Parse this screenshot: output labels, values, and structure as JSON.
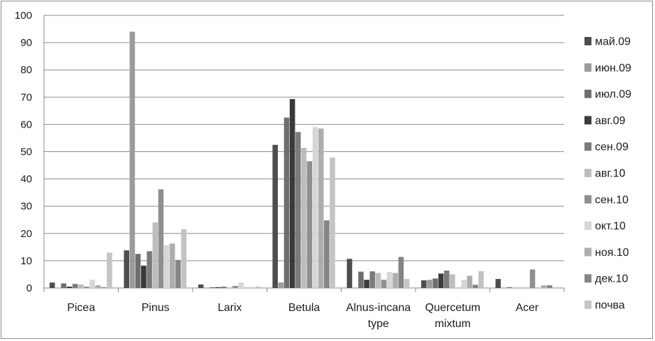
{
  "chart_data": {
    "type": "bar",
    "title": "",
    "xlabel": "",
    "ylabel": "",
    "ylim": [
      0,
      100
    ],
    "yticks": [
      "0",
      "10",
      "20",
      "30",
      "40",
      "50",
      "60",
      "70",
      "80",
      "90",
      "100"
    ],
    "grid": "horizontal",
    "legend_position": "right",
    "categories": [
      [
        "Picea"
      ],
      [
        "Pinus"
      ],
      [
        "Larix"
      ],
      [
        "Betula"
      ],
      [
        "Alnus-incana",
        "type"
      ],
      [
        "Quercetum",
        "mixtum"
      ],
      [
        "Acer"
      ]
    ],
    "series": [
      {
        "name": "май.09",
        "color": "#4d4d4d",
        "values": [
          2.0,
          13.8,
          1.3,
          52.5,
          10.7,
          2.8,
          3.3
        ]
      },
      {
        "name": "июн.09",
        "color": "#9b9b9b",
        "values": [
          0.0,
          94.0,
          0.0,
          2.0,
          0.0,
          3.0,
          0.0
        ]
      },
      {
        "name": "июл.09",
        "color": "#6e6e6e",
        "values": [
          1.7,
          12.5,
          0.3,
          62.5,
          6.0,
          3.5,
          0.3
        ]
      },
      {
        "name": "авг.09",
        "color": "#3a3a3a",
        "values": [
          0.5,
          8.2,
          0.3,
          69.3,
          3.0,
          5.3,
          0.0
        ]
      },
      {
        "name": "сен.09",
        "color": "#7a7a7a",
        "values": [
          1.5,
          13.5,
          0.5,
          57.2,
          6.1,
          6.4,
          0.0
        ]
      },
      {
        "name": "авг.10",
        "color": "#bdbdbd",
        "values": [
          1.3,
          24.0,
          0.3,
          51.4,
          5.5,
          5.0,
          0.0
        ]
      },
      {
        "name": "сен.10",
        "color": "#8f8f8f",
        "values": [
          0.5,
          36.2,
          0.8,
          46.5,
          3.0,
          0.0,
          6.8
        ]
      },
      {
        "name": "окт.10",
        "color": "#d6d6d6",
        "values": [
          3.0,
          15.7,
          2.0,
          59.0,
          5.9,
          3.0,
          0.0
        ]
      },
      {
        "name": "ноя.10",
        "color": "#adadad",
        "values": [
          1.0,
          16.3,
          0.0,
          58.5,
          5.5,
          4.5,
          1.0
        ]
      },
      {
        "name": "дек.10",
        "color": "#858585",
        "values": [
          0.3,
          10.3,
          0.0,
          24.8,
          11.4,
          1.2,
          1.0
        ]
      },
      {
        "name": "почва",
        "color": "#c4c4c4",
        "values": [
          13.0,
          21.6,
          0.5,
          47.8,
          3.3,
          6.2,
          0.3
        ]
      }
    ]
  }
}
